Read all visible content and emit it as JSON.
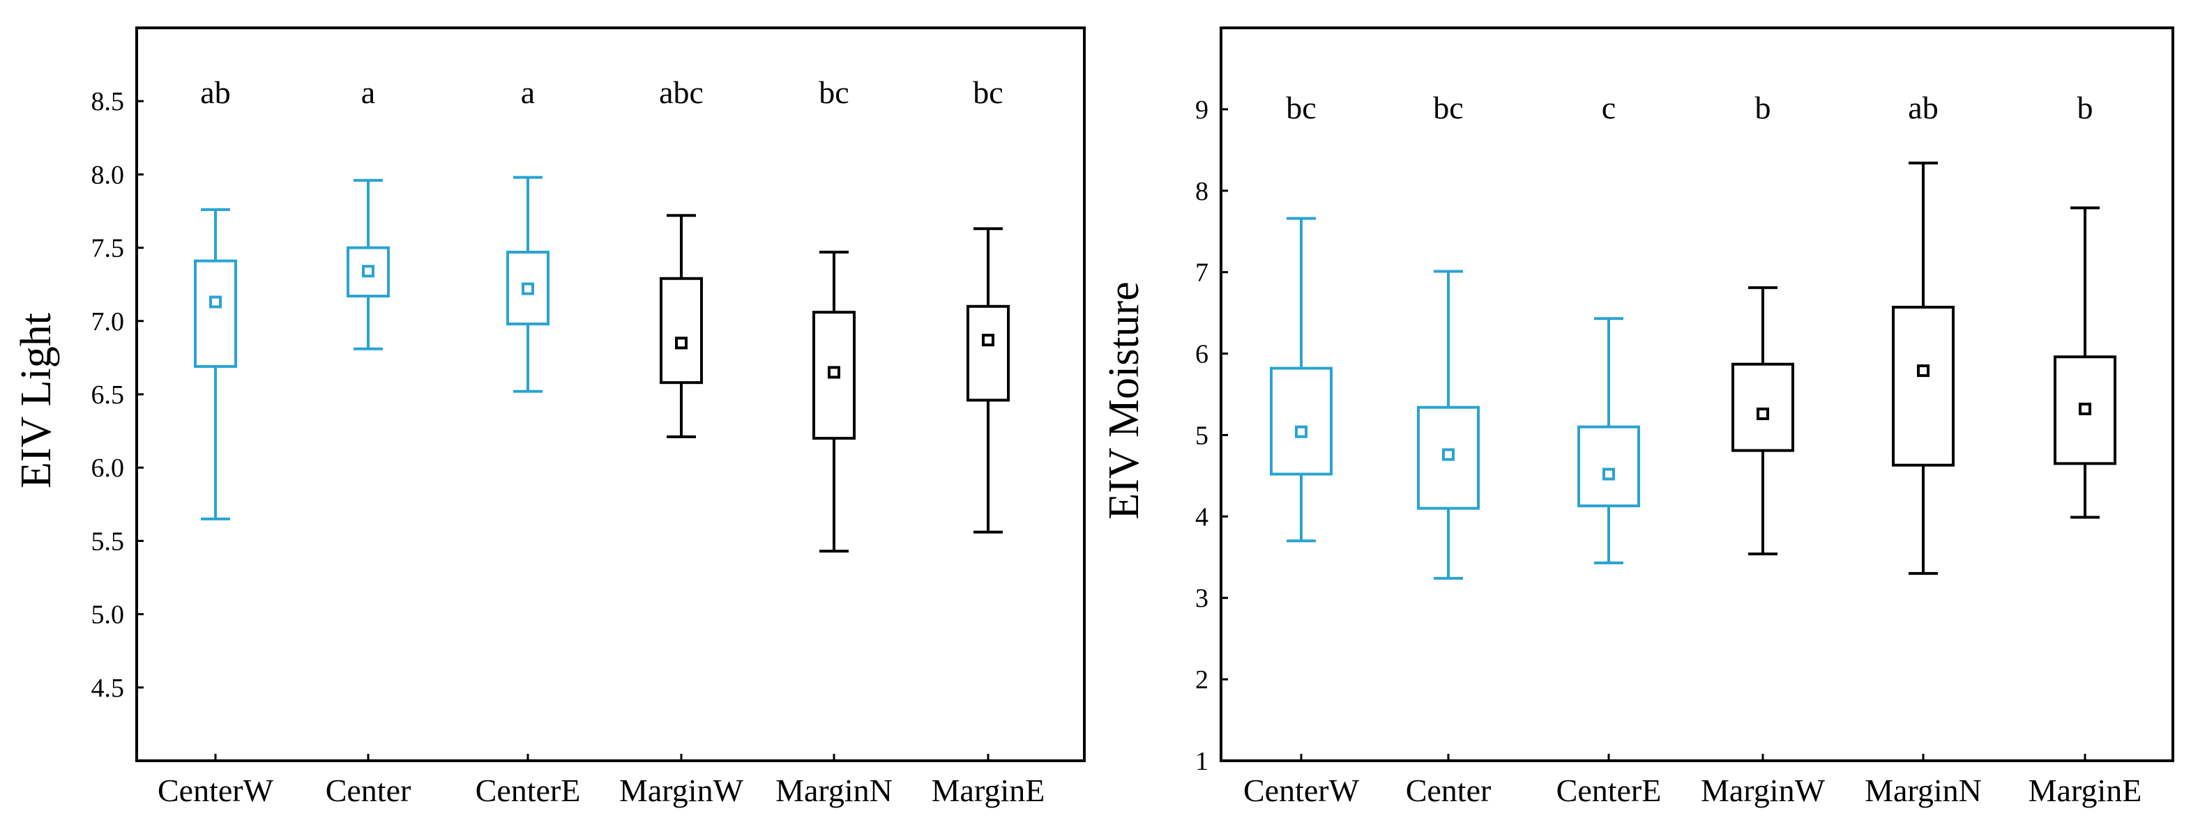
{
  "colors": {
    "center": "#2aa3d2",
    "margin": "#000000"
  },
  "chart_data": [
    {
      "type": "boxplot",
      "title": "",
      "xlabel": "",
      "ylabel": "EIV Light",
      "ylim": [
        4.0,
        9.0
      ],
      "yticks": [
        4.5,
        5.0,
        5.5,
        6.0,
        6.5,
        7.0,
        7.5,
        8.0,
        8.5
      ],
      "ytick_labels": [
        "4.5",
        "5.0",
        "5.5",
        "6.0",
        "6.5",
        "7.0",
        "7.5",
        "8.0",
        "8.5"
      ],
      "categories": [
        "CenterW",
        "Center",
        "CenterE",
        "MarginW",
        "MarginN",
        "MarginE"
      ],
      "group": [
        "center",
        "center",
        "center",
        "margin",
        "margin",
        "margin"
      ],
      "significance": [
        "ab",
        "a",
        "a",
        "abc",
        "bc",
        "bc"
      ],
      "boxes": [
        {
          "whisker_low": 5.65,
          "q1": 6.69,
          "mean": 7.13,
          "q3": 7.41,
          "whisker_high": 7.76
        },
        {
          "whisker_low": 6.81,
          "q1": 7.17,
          "mean": 7.34,
          "q3": 7.5,
          "whisker_high": 7.96
        },
        {
          "whisker_low": 6.52,
          "q1": 6.98,
          "mean": 7.22,
          "q3": 7.47,
          "whisker_high": 7.98
        },
        {
          "whisker_low": 6.21,
          "q1": 6.58,
          "mean": 6.85,
          "q3": 7.29,
          "whisker_high": 7.72
        },
        {
          "whisker_low": 5.43,
          "q1": 6.2,
          "mean": 6.65,
          "q3": 7.06,
          "whisker_high": 7.47
        },
        {
          "whisker_low": 5.56,
          "q1": 6.46,
          "mean": 6.87,
          "q3": 7.1,
          "whisker_high": 7.63
        }
      ]
    },
    {
      "type": "boxplot",
      "title": "",
      "xlabel": "",
      "ylabel": "EIV Moisture",
      "ylim": [
        1,
        10
      ],
      "yticks": [
        1,
        2,
        3,
        4,
        5,
        6,
        7,
        8,
        9
      ],
      "ytick_labels": [
        "1",
        "2",
        "3",
        "4",
        "5",
        "6",
        "7",
        "8",
        "9"
      ],
      "categories": [
        "CenterW",
        "Center",
        "CenterE",
        "MarginW",
        "MarginN",
        "MarginE"
      ],
      "group": [
        "center",
        "center",
        "center",
        "margin",
        "margin",
        "margin"
      ],
      "significance": [
        "bc",
        "bc",
        "c",
        "b",
        "ab",
        "b"
      ],
      "boxes": [
        {
          "whisker_low": 3.7,
          "q1": 4.52,
          "mean": 5.04,
          "q3": 5.82,
          "whisker_high": 7.66
        },
        {
          "whisker_low": 3.24,
          "q1": 4.1,
          "mean": 4.76,
          "q3": 5.34,
          "whisker_high": 7.01
        },
        {
          "whisker_low": 3.43,
          "q1": 4.13,
          "mean": 4.52,
          "q3": 5.1,
          "whisker_high": 6.43
        },
        {
          "whisker_low": 3.54,
          "q1": 4.81,
          "mean": 5.26,
          "q3": 5.87,
          "whisker_high": 6.81
        },
        {
          "whisker_low": 3.3,
          "q1": 4.63,
          "mean": 5.79,
          "q3": 6.57,
          "whisker_high": 8.34
        },
        {
          "whisker_low": 3.99,
          "q1": 4.65,
          "mean": 5.32,
          "q3": 5.96,
          "whisker_high": 7.79
        }
      ]
    }
  ]
}
